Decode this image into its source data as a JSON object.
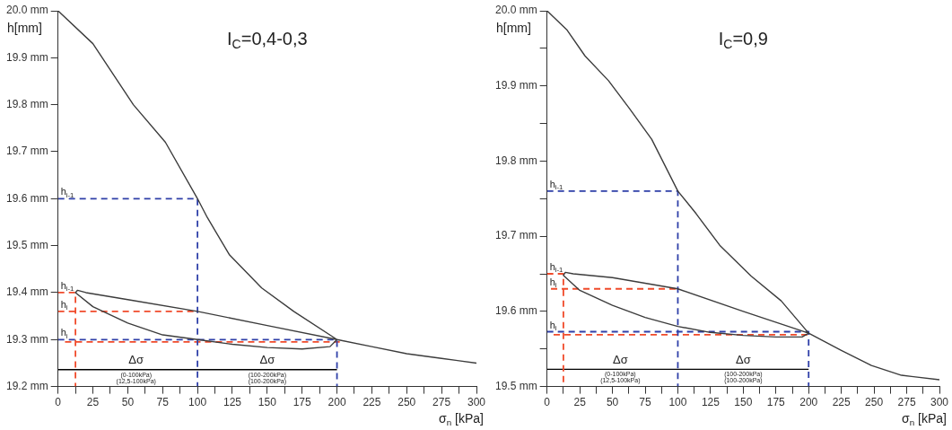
{
  "chart_data": [
    {
      "type": "line",
      "title": "I$_{C}$=0,4-0,3",
      "xlabel": "σ$_{n}$ [kPa]",
      "ylabel": "h[mm]",
      "grid": false,
      "legend": false,
      "marker": "none",
      "xlim": [
        0,
        300
      ],
      "xticks": [
        0,
        {
          "value": 12.5,
          "label": null
        },
        25,
        {
          "value": 37.5,
          "label": null
        },
        50,
        {
          "value": 62.5,
          "label": null
        },
        75,
        {
          "value": 87.5,
          "label": null
        },
        100,
        {
          "value": 112.5,
          "label": null
        },
        125,
        {
          "value": 137.5,
          "label": null
        },
        150,
        {
          "value": 162.5,
          "label": null
        },
        175,
        {
          "value": 187.5,
          "label": null
        },
        200,
        {
          "value": 212.5,
          "label": null
        },
        225,
        {
          "value": 237.5,
          "label": null
        },
        250,
        {
          "value": 262.5,
          "label": null
        },
        275,
        {
          "value": 287.5,
          "label": null
        },
        300
      ],
      "ylim": [
        19.2,
        20.0
      ],
      "yticks": [
        {
          "value": 19.2,
          "label": "19.2 mm"
        },
        {
          "value": 19.3,
          "label": "19.3 mm"
        },
        {
          "value": 19.4,
          "label": "19.4 mm"
        },
        {
          "value": 19.5,
          "label": "19.5 mm"
        },
        {
          "value": 19.6,
          "label": "19.6 mm"
        },
        {
          "value": 19.7,
          "label": "19.7 mm"
        },
        {
          "value": 19.8,
          "label": "19.8 mm"
        },
        {
          "value": 19.9,
          "label": "19.9 mm"
        },
        {
          "value": 20.0,
          "label": "20.0 mm"
        }
      ],
      "series": [
        {
          "color": "#3c3c3c",
          "line_style": "solid",
          "x": [
            0,
            25,
            54,
            77,
            100,
            107,
            123,
            146,
            169,
            200,
            150,
            100,
            50,
            20,
            14,
            12.5,
            25,
            50,
            75,
            100,
            125,
            150,
            175,
            195,
            200,
            225,
            250,
            275,
            300
          ],
          "values": [
            20.0,
            19.93,
            19.8,
            19.72,
            19.6,
            19.56,
            19.48,
            19.41,
            19.36,
            19.3,
            19.33,
            19.36,
            19.385,
            19.4,
            19.405,
            19.4,
            19.37,
            19.335,
            19.31,
            19.3,
            19.29,
            19.283,
            19.28,
            19.285,
            19.3,
            19.285,
            19.27,
            19.26,
            19.25
          ]
        },
        {
          "color": "#2e3fa8",
          "line_style": "dashed",
          "x": [
            0,
            100,
            100,
            null,
            0,
            200,
            200
          ],
          "values": [
            19.6,
            19.6,
            19.2,
            null,
            19.3,
            19.3,
            19.2
          ]
        },
        {
          "color": "#f04a2a",
          "line_style": "dashed",
          "x": [
            0,
            12.5,
            12.5,
            null,
            0,
            100,
            null,
            5,
            202
          ],
          "values": [
            19.4,
            19.4,
            19.2,
            null,
            19.36,
            19.36,
            null,
            19.295,
            19.295
          ]
        },
        {
          "color": "#000000",
          "line_style": "solid",
          "x": [
            0,
            6,
            12.5,
            56,
            100,
            150,
            200
          ],
          "values": [
            19.236,
            19.236,
            19.236,
            19.236,
            19.236,
            19.236,
            19.236
          ]
        }
      ],
      "annotations": [
        {
          "text": "h$_{i-1}$",
          "x": 0,
          "y": 19.6
        },
        {
          "text": "h$_{i-1}$",
          "x": 0,
          "y": 19.4
        },
        {
          "text": "h$_{i}$",
          "x": 0,
          "y": 19.36
        },
        {
          "text": "h$_{i}$",
          "x": 0,
          "y": 19.3
        },
        {
          "text": "Δσ",
          "x": 56,
          "y": 19.236
        },
        {
          "text": "(0-100kPa)",
          "x": 56,
          "y": 19.236
        },
        {
          "text": "(12,5-100kPa)",
          "x": 56,
          "y": 19.236
        },
        {
          "text": "Δσ",
          "x": 150,
          "y": 19.236
        },
        {
          "text": "(100-200kPa)",
          "x": 150,
          "y": 19.236
        },
        {
          "text": "(100-200kPa)",
          "x": 150,
          "y": 19.236
        }
      ]
    },
    {
      "type": "line",
      "title": "I$_{C}$=0,9",
      "xlabel": "σ$_{n}$ [kPa]",
      "ylabel": "h[mm]",
      "grid": false,
      "legend": false,
      "marker": "none",
      "xlim": [
        0,
        300
      ],
      "xticks": [
        0,
        {
          "value": 12.5,
          "label": null
        },
        25,
        {
          "value": 37.5,
          "label": null
        },
        50,
        {
          "value": 62.5,
          "label": null
        },
        75,
        {
          "value": 87.5,
          "label": null
        },
        100,
        {
          "value": 112.5,
          "label": null
        },
        125,
        {
          "value": 137.5,
          "label": null
        },
        150,
        {
          "value": 162.5,
          "label": null
        },
        175,
        {
          "value": 187.5,
          "label": null
        },
        200,
        {
          "value": 212.5,
          "label": null
        },
        225,
        {
          "value": 237.5,
          "label": null
        },
        250,
        {
          "value": 262.5,
          "label": null
        },
        275,
        {
          "value": 287.5,
          "label": null
        },
        300
      ],
      "ylim": [
        19.5,
        20.0
      ],
      "yticks": [
        {
          "value": 19.5,
          "label": "19.5 mm"
        },
        {
          "value": 19.55,
          "label": null
        },
        {
          "value": 19.6,
          "label": "19.6 mm"
        },
        {
          "value": 19.65,
          "label": null
        },
        {
          "value": 19.7,
          "label": "19.7 mm"
        },
        {
          "value": 19.75,
          "label": null
        },
        {
          "value": 19.8,
          "label": "19.8 mm"
        },
        {
          "value": 19.85,
          "label": null
        },
        {
          "value": 19.9,
          "label": "19.9 mm"
        },
        {
          "value": 19.95,
          "label": null
        },
        {
          "value": 20.0,
          "label": "20.0 mm"
        }
      ],
      "series": [
        {
          "color": "#3c3c3c",
          "line_style": "solid",
          "x": [
            0,
            15,
            29,
            47,
            63,
            80,
            100,
            114,
            132,
            156,
            179,
            200,
            150,
            100,
            50,
            20,
            14,
            12.5,
            25,
            50,
            75,
            100,
            125,
            150,
            175,
            195,
            200,
            225,
            248,
            271,
            300
          ],
          "values": [
            20.0,
            19.975,
            19.94,
            19.907,
            19.87,
            19.829,
            19.76,
            19.73,
            19.688,
            19.647,
            19.614,
            19.571,
            19.6,
            19.63,
            19.645,
            19.65,
            19.652,
            19.648,
            19.628,
            19.608,
            19.592,
            19.58,
            19.572,
            19.568,
            19.566,
            19.566,
            19.571,
            19.548,
            19.528,
            19.515,
            19.509
          ]
        },
        {
          "color": "#2e3fa8",
          "line_style": "dashed",
          "x": [
            0,
            100,
            100,
            null,
            0,
            200,
            200
          ],
          "values": [
            19.76,
            19.76,
            19.5,
            null,
            19.573,
            19.573,
            19.5
          ]
        },
        {
          "color": "#f04a2a",
          "line_style": "dashed",
          "x": [
            0,
            12.5,
            12.5,
            null,
            3,
            100,
            null,
            5,
            200
          ],
          "values": [
            19.65,
            19.65,
            19.5,
            null,
            19.63,
            19.63,
            null,
            19.569,
            19.569
          ]
        },
        {
          "color": "#000000",
          "line_style": "solid",
          "x": [
            0,
            6,
            12.5,
            56,
            100,
            150,
            200
          ],
          "values": [
            19.523,
            19.523,
            19.523,
            19.523,
            19.523,
            19.523,
            19.523
          ]
        }
      ],
      "annotations": [
        {
          "text": "h$_{i-1}$",
          "x": 0,
          "y": 19.76
        },
        {
          "text": "h$_{i-1}$",
          "x": 0,
          "y": 19.65
        },
        {
          "text": "h$_{i}$",
          "x": 0,
          "y": 19.63
        },
        {
          "text": "h$_{i}$",
          "x": 0,
          "y": 19.573
        },
        {
          "text": "Δσ",
          "x": 56,
          "y": 19.523
        },
        {
          "text": "(0-100kPa)",
          "x": 56,
          "y": 19.523
        },
        {
          "text": "(12,5-100kPa)",
          "x": 56,
          "y": 19.523
        },
        {
          "text": "Δσ",
          "x": 150,
          "y": 19.523
        },
        {
          "text": "(100-200kPa)",
          "x": 150,
          "y": 19.523
        },
        {
          "text": "(100-200kPa)",
          "x": 150,
          "y": 19.523
        }
      ]
    }
  ]
}
